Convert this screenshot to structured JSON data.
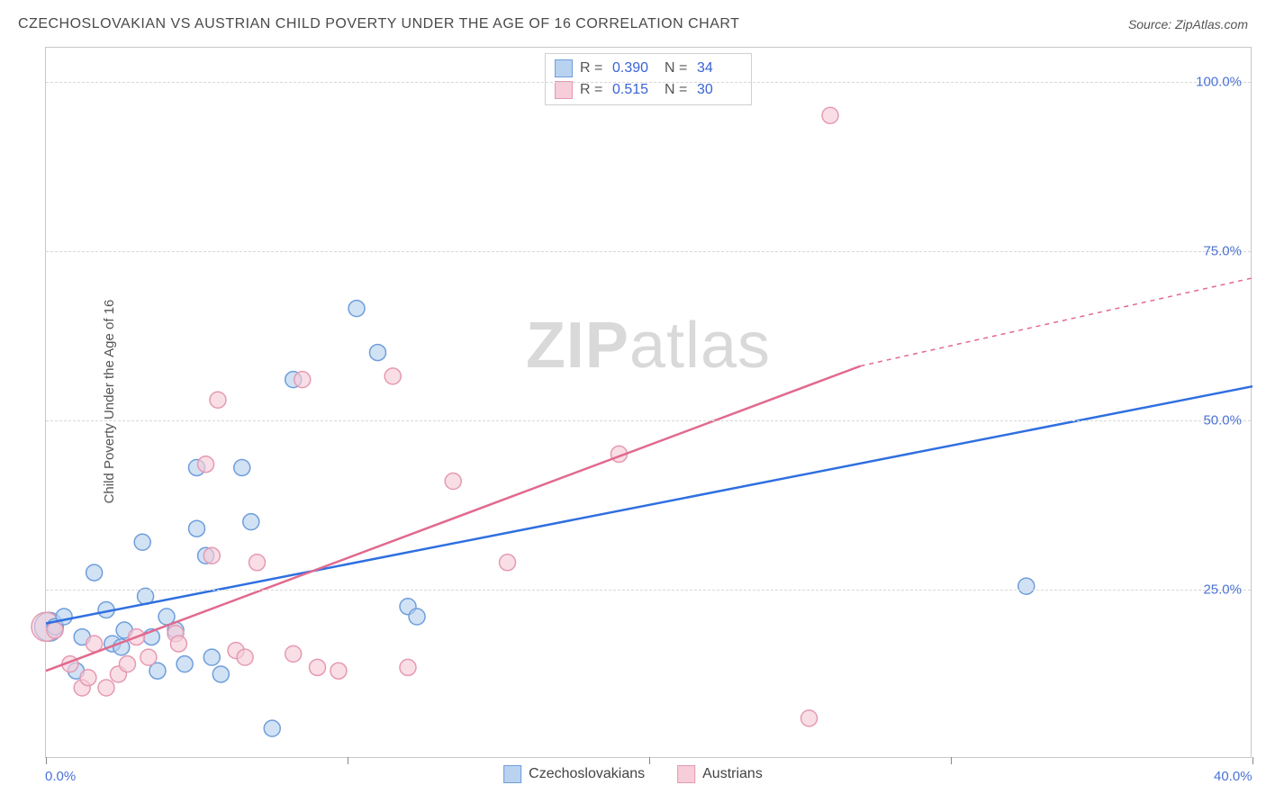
{
  "title": "CZECHOSLOVAKIAN VS AUSTRIAN CHILD POVERTY UNDER THE AGE OF 16 CORRELATION CHART",
  "source_label": "Source: ",
  "source_name": "ZipAtlas.com",
  "y_axis_label": "Child Poverty Under the Age of 16",
  "watermark_a": "ZIP",
  "watermark_b": "atlas",
  "chart": {
    "type": "scatter",
    "xlim": [
      0,
      40
    ],
    "ylim": [
      0,
      105
    ],
    "x_ticks": [
      0,
      10,
      20,
      30,
      40
    ],
    "x_tick_labels": [
      "0.0%",
      "",
      "",
      "",
      "40.0%"
    ],
    "y_ticks": [
      25,
      50,
      75,
      100
    ],
    "y_tick_labels": [
      "25.0%",
      "50.0%",
      "75.0%",
      "100.0%"
    ],
    "grid_color": "#dcdcdc",
    "background_color": "#ffffff",
    "marker_radius": 9,
    "marker_big_radius": 16,
    "series": [
      {
        "name": "Czechoslovakians",
        "color_fill": "#b8d2f0",
        "color_stroke": "#6f9edb",
        "line_color": "#2f6fe0",
        "r_value": "0.390",
        "n_value": "34",
        "trend": {
          "x1": 0,
          "y1": 20,
          "x2": 40,
          "y2": 55
        },
        "points": [
          [
            0.3,
            19.5
          ],
          [
            0.3,
            19.5
          ],
          [
            0.6,
            21
          ],
          [
            1.0,
            13
          ],
          [
            1.2,
            18
          ],
          [
            1.6,
            27.5
          ],
          [
            2.0,
            22
          ],
          [
            2.2,
            17
          ],
          [
            2.5,
            16.5
          ],
          [
            2.6,
            19
          ],
          [
            3.2,
            32
          ],
          [
            3.3,
            24
          ],
          [
            3.5,
            18
          ],
          [
            3.7,
            13
          ],
          [
            4.0,
            21
          ],
          [
            4.3,
            19
          ],
          [
            4.6,
            14
          ],
          [
            5.0,
            34
          ],
          [
            5.0,
            43
          ],
          [
            5.3,
            30
          ],
          [
            5.5,
            15
          ],
          [
            5.8,
            12.5
          ],
          [
            6.5,
            43
          ],
          [
            6.8,
            35
          ],
          [
            7.5,
            4.5
          ],
          [
            8.2,
            56
          ],
          [
            10.3,
            66.5
          ],
          [
            11.0,
            60
          ],
          [
            12.0,
            22.5
          ],
          [
            12.3,
            21
          ],
          [
            32.5,
            25.5
          ]
        ],
        "big_points": [
          [
            0.1,
            19.5
          ]
        ]
      },
      {
        "name": "Austrians",
        "color_fill": "#f6cdd9",
        "color_stroke": "#e59ab2",
        "line_color": "#e16a8e",
        "r_value": "0.515",
        "n_value": "30",
        "trend": {
          "x1": 0,
          "y1": 13,
          "x2": 27,
          "y2": 58
        },
        "trend_dash": {
          "x1": 27,
          "y1": 58,
          "x2": 40,
          "y2": 71
        },
        "points": [
          [
            0.3,
            19
          ],
          [
            0.8,
            14
          ],
          [
            1.2,
            10.5
          ],
          [
            1.4,
            12
          ],
          [
            1.6,
            17
          ],
          [
            2.0,
            10.5
          ],
          [
            2.4,
            12.5
          ],
          [
            2.7,
            14
          ],
          [
            3.0,
            18
          ],
          [
            3.4,
            15
          ],
          [
            4.3,
            18.5
          ],
          [
            4.4,
            17
          ],
          [
            5.3,
            43.5
          ],
          [
            5.5,
            30
          ],
          [
            5.7,
            53
          ],
          [
            6.3,
            16
          ],
          [
            6.6,
            15
          ],
          [
            7.0,
            29
          ],
          [
            8.2,
            15.5
          ],
          [
            8.5,
            56
          ],
          [
            9.0,
            13.5
          ],
          [
            9.7,
            13
          ],
          [
            11.5,
            56.5
          ],
          [
            12.0,
            13.5
          ],
          [
            13.5,
            41
          ],
          [
            15.3,
            29
          ],
          [
            19.0,
            45
          ],
          [
            25.3,
            6
          ],
          [
            26.0,
            95
          ]
        ],
        "big_points": [
          [
            0.0,
            19.5
          ]
        ]
      }
    ]
  },
  "legend_top": {
    "r_label": "R =",
    "n_label": "N ="
  },
  "colors": {
    "title": "#4a4a4a",
    "axis_text": "#4a72d4",
    "border": "#c8c8c8"
  }
}
